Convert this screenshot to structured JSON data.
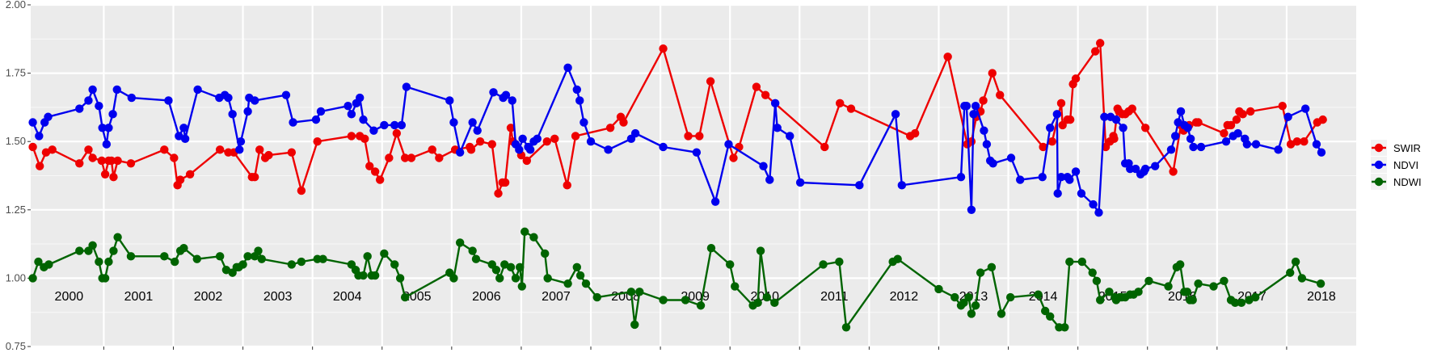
{
  "chart_data": {
    "type": "line",
    "title": "",
    "xlabel": "",
    "ylabel": "",
    "ylim": [
      0.75,
      2.0
    ],
    "xlim": [
      1999.95,
      2019.0
    ],
    "yticks": [
      "0.75",
      "1.00",
      "1.25",
      "1.50",
      "1.75",
      "2.00"
    ],
    "ytick_values": [
      0.75,
      1.0,
      1.25,
      1.5,
      1.75,
      2.0
    ],
    "year_labels": [
      "2000",
      "2001",
      "2002",
      "2003",
      "2004",
      "2005",
      "2006",
      "2007",
      "2008",
      "2009",
      "2010",
      "2011",
      "2012",
      "2013",
      "2014",
      "2015",
      "2016",
      "2017",
      "2018"
    ],
    "grid": true,
    "legend_position": "right",
    "series": [
      {
        "name": "SWIR",
        "color": "#ee0000",
        "x": [
          1999.98,
          2000.08,
          2000.17,
          2000.26,
          2000.65,
          2000.78,
          2000.84,
          2000.97,
          2001.02,
          2001.07,
          2001.11,
          2001.14,
          2001.2,
          2001.39,
          2001.87,
          2002.01,
          2002.06,
          2002.1,
          2002.24,
          2002.67,
          2002.79,
          2002.87,
          2003.13,
          2003.17,
          2003.24,
          2003.32,
          2003.37,
          2003.7,
          2003.84,
          2004.07,
          2004.56,
          2004.68,
          2004.75,
          2004.82,
          2004.9,
          2004.97,
          2005.1,
          2005.21,
          2005.33,
          2005.42,
          2005.72,
          2005.82,
          2006.05,
          2006.26,
          2006.28,
          2006.41,
          2006.58,
          2006.67,
          2006.73,
          2006.77,
          2006.85,
          2006.88,
          2007.0,
          2007.08,
          2007.37,
          2007.48,
          2007.66,
          2007.78,
          2008.28,
          2008.43,
          2008.47,
          2009.04,
          2009.4,
          2009.56,
          2009.72,
          2010.05,
          2010.13,
          2010.38,
          2010.51,
          2011.36,
          2011.58,
          2011.74,
          2012.59,
          2012.66,
          2013.13,
          2013.41,
          2013.47,
          2013.54,
          2013.6,
          2013.64,
          2013.77,
          2013.88,
          2014.5,
          2014.63,
          2014.76,
          2014.78,
          2014.85,
          2014.89,
          2014.93,
          2014.97,
          2015.25,
          2015.32,
          2015.4,
          2015.46,
          2015.51,
          2015.52,
          2015.57,
          2015.59,
          2015.64,
          2015.68,
          2015.73,
          2015.78,
          2015.97,
          2016.37,
          2016.48,
          2016.52,
          2016.6,
          2016.7,
          2016.73,
          2017.1,
          2017.15,
          2017.2,
          2017.28,
          2017.32,
          2017.37,
          2017.48,
          2017.94,
          2018.06,
          2018.15,
          2018.25,
          2018.44,
          2018.52
        ],
        "y": [
          1.48,
          1.41,
          1.46,
          1.47,
          1.42,
          1.47,
          1.44,
          1.43,
          1.38,
          1.43,
          1.43,
          1.37,
          1.43,
          1.42,
          1.47,
          1.44,
          1.34,
          1.36,
          1.38,
          1.47,
          1.46,
          1.46,
          1.37,
          1.37,
          1.47,
          1.44,
          1.45,
          1.46,
          1.32,
          1.5,
          1.52,
          1.52,
          1.51,
          1.41,
          1.39,
          1.36,
          1.44,
          1.53,
          1.44,
          1.44,
          1.47,
          1.44,
          1.47,
          1.48,
          1.47,
          1.5,
          1.49,
          1.31,
          1.35,
          1.35,
          1.55,
          1.5,
          1.45,
          1.43,
          1.5,
          1.51,
          1.34,
          1.52,
          1.55,
          1.59,
          1.57,
          1.84,
          1.52,
          1.52,
          1.72,
          1.44,
          1.48,
          1.7,
          1.67,
          1.48,
          1.64,
          1.62,
          1.52,
          1.53,
          1.81,
          1.49,
          1.5,
          1.59,
          1.61,
          1.65,
          1.75,
          1.67,
          1.48,
          1.5,
          1.64,
          1.56,
          1.58,
          1.58,
          1.71,
          1.73,
          1.83,
          1.86,
          1.48,
          1.5,
          1.52,
          1.51,
          1.62,
          1.61,
          1.6,
          1.6,
          1.61,
          1.62,
          1.55,
          1.39,
          1.56,
          1.54,
          1.56,
          1.57,
          1.57,
          1.53,
          1.56,
          1.56,
          1.58,
          1.61,
          1.6,
          1.61,
          1.63,
          1.49,
          1.5,
          1.5,
          1.57,
          1.58
        ]
      },
      {
        "name": "NDVI",
        "color": "#0000ee",
        "x": [
          1999.98,
          2000.07,
          2000.15,
          2000.2,
          2000.65,
          2000.78,
          2000.84,
          2000.93,
          2000.98,
          2001.04,
          2001.07,
          2001.13,
          2001.19,
          2001.4,
          2001.93,
          2002.08,
          2002.15,
          2002.17,
          2002.35,
          2002.66,
          2002.74,
          2002.79,
          2002.85,
          2002.95,
          2002.97,
          2003.07,
          2003.09,
          2003.17,
          2003.62,
          2003.72,
          2004.05,
          2004.12,
          2004.51,
          2004.56,
          2004.63,
          2004.68,
          2004.73,
          2004.88,
          2005.03,
          2005.18,
          2005.28,
          2005.35,
          2005.97,
          2006.03,
          2006.12,
          2006.3,
          2006.37,
          2006.6,
          2006.74,
          2006.78,
          2006.87,
          2006.92,
          2006.97,
          2007.02,
          2007.1,
          2007.13,
          2007.18,
          2007.23,
          2007.67,
          2007.8,
          2007.84,
          2007.9,
          2008.0,
          2008.25,
          2008.58,
          2008.64,
          2009.04,
          2009.52,
          2009.79,
          2009.98,
          2010.48,
          2010.57,
          2010.65,
          2010.68,
          2010.86,
          2011.01,
          2011.86,
          2012.38,
          2012.47,
          2013.32,
          2013.37,
          2013.4,
          2013.47,
          2013.5,
          2013.53,
          2013.65,
          2013.69,
          2013.74,
          2013.78,
          2014.04,
          2014.17,
          2014.49,
          2014.6,
          2014.7,
          2014.71,
          2014.76,
          2014.85,
          2014.88,
          2014.97,
          2015.05,
          2015.22,
          2015.3,
          2015.38,
          2015.47,
          2015.55,
          2015.65,
          2015.68,
          2015.73,
          2015.75,
          2015.83,
          2015.9,
          2015.95,
          2015.97,
          2016.11,
          2016.34,
          2016.4,
          2016.44,
          2016.48,
          2016.53,
          2016.58,
          2016.62,
          2016.66,
          2016.77,
          2017.13,
          2017.23,
          2017.3,
          2017.4,
          2017.43,
          2017.56,
          2017.88,
          2018.02,
          2018.27,
          2018.43,
          2018.5
        ],
        "y": [
          1.57,
          1.52,
          1.57,
          1.59,
          1.62,
          1.65,
          1.69,
          1.63,
          1.55,
          1.49,
          1.55,
          1.6,
          1.69,
          1.66,
          1.65,
          1.52,
          1.55,
          1.51,
          1.69,
          1.66,
          1.67,
          1.66,
          1.6,
          1.47,
          1.5,
          1.61,
          1.66,
          1.65,
          1.67,
          1.57,
          1.58,
          1.61,
          1.63,
          1.6,
          1.64,
          1.66,
          1.58,
          1.54,
          1.56,
          1.56,
          1.56,
          1.7,
          1.65,
          1.57,
          1.46,
          1.57,
          1.54,
          1.68,
          1.66,
          1.67,
          1.65,
          1.49,
          1.47,
          1.51,
          1.48,
          1.47,
          1.5,
          1.51,
          1.77,
          1.69,
          1.65,
          1.57,
          1.5,
          1.47,
          1.51,
          1.53,
          1.48,
          1.46,
          1.28,
          1.49,
          1.41,
          1.36,
          1.64,
          1.55,
          1.52,
          1.35,
          1.34,
          1.6,
          1.34,
          1.37,
          1.63,
          1.63,
          1.25,
          1.6,
          1.63,
          1.54,
          1.49,
          1.43,
          1.42,
          1.44,
          1.36,
          1.37,
          1.55,
          1.6,
          1.31,
          1.37,
          1.37,
          1.36,
          1.39,
          1.31,
          1.27,
          1.24,
          1.59,
          1.59,
          1.58,
          1.55,
          1.42,
          1.42,
          1.4,
          1.4,
          1.38,
          1.39,
          1.4,
          1.41,
          1.47,
          1.52,
          1.57,
          1.61,
          1.56,
          1.55,
          1.51,
          1.48,
          1.48,
          1.5,
          1.52,
          1.53,
          1.51,
          1.49,
          1.49,
          1.47,
          1.59,
          1.62,
          1.49,
          1.46
        ]
      },
      {
        "name": "NDWI",
        "color": "#006400",
        "x": [
          1999.98,
          2000.06,
          2000.14,
          2000.21,
          2000.65,
          2000.78,
          2000.84,
          2000.93,
          2000.98,
          2001.02,
          2001.07,
          2001.14,
          2001.2,
          2001.39,
          2001.87,
          2002.02,
          2002.1,
          2002.15,
          2002.34,
          2002.67,
          2002.76,
          2002.85,
          2002.91,
          2002.94,
          2003.0,
          2003.07,
          2003.17,
          2003.22,
          2003.27,
          2003.7,
          2003.84,
          2004.07,
          2004.15,
          2004.56,
          2004.62,
          2004.66,
          2004.73,
          2004.79,
          2004.85,
          2004.9,
          2005.03,
          2005.18,
          2005.26,
          2005.33,
          2005.97,
          2006.03,
          2006.12,
          2006.3,
          2006.35,
          2006.58,
          2006.64,
          2006.69,
          2006.76,
          2006.85,
          2006.92,
          2006.98,
          2007.01,
          2007.05,
          2007.18,
          2007.34,
          2007.38,
          2007.67,
          2007.8,
          2007.85,
          2007.93,
          2008.09,
          2008.58,
          2008.63,
          2008.7,
          2009.04,
          2009.36,
          2009.58,
          2009.73,
          2010.0,
          2010.07,
          2010.33,
          2010.4,
          2010.44,
          2010.53,
          2010.64,
          2011.34,
          2011.57,
          2011.67,
          2012.34,
          2012.41,
          2013.0,
          2013.23,
          2013.32,
          2013.36,
          2013.43,
          2013.47,
          2013.53,
          2013.6,
          2013.76,
          2013.9,
          2014.03,
          2014.43,
          2014.53,
          2014.6,
          2014.73,
          2014.81,
          2014.88,
          2015.06,
          2015.21,
          2015.27,
          2015.32,
          2015.45,
          2015.53,
          2015.55,
          2015.6,
          2015.63,
          2015.68,
          2015.75,
          2015.8,
          2015.87,
          2016.02,
          2016.3,
          2016.42,
          2016.47,
          2016.53,
          2016.57,
          2016.61,
          2016.65,
          2016.73,
          2016.95,
          2017.1,
          2017.2,
          2017.26,
          2017.35,
          2017.46,
          2017.55,
          2018.05,
          2018.13,
          2018.22,
          2018.49
        ],
        "y": [
          1.0,
          1.06,
          1.04,
          1.05,
          1.1,
          1.1,
          1.12,
          1.06,
          1.0,
          1.0,
          1.06,
          1.1,
          1.15,
          1.08,
          1.08,
          1.06,
          1.1,
          1.11,
          1.07,
          1.08,
          1.03,
          1.02,
          1.04,
          1.04,
          1.05,
          1.08,
          1.08,
          1.1,
          1.07,
          1.05,
          1.06,
          1.07,
          1.07,
          1.05,
          1.03,
          1.01,
          1.01,
          1.08,
          1.01,
          1.01,
          1.09,
          1.05,
          1.0,
          0.93,
          1.02,
          1.0,
          1.13,
          1.1,
          1.07,
          1.05,
          1.03,
          1.0,
          1.05,
          1.04,
          1.0,
          1.04,
          0.97,
          1.17,
          1.15,
          1.09,
          1.0,
          0.98,
          1.04,
          1.01,
          0.98,
          0.93,
          0.95,
          0.83,
          0.95,
          0.92,
          0.92,
          0.9,
          1.11,
          1.05,
          0.97,
          0.9,
          0.91,
          1.1,
          0.93,
          0.91,
          1.05,
          1.06,
          0.82,
          1.06,
          1.07,
          0.96,
          0.93,
          0.9,
          0.91,
          0.93,
          0.87,
          0.9,
          1.02,
          1.04,
          0.87,
          0.93,
          0.94,
          0.88,
          0.86,
          0.82,
          0.82,
          1.06,
          1.06,
          1.02,
          0.99,
          0.92,
          0.95,
          0.93,
          0.92,
          0.93,
          0.93,
          0.93,
          0.94,
          0.94,
          0.95,
          0.99,
          0.97,
          1.04,
          1.05,
          0.95,
          0.95,
          0.92,
          0.92,
          0.98,
          0.97,
          0.99,
          0.92,
          0.91,
          0.91,
          0.92,
          0.93,
          1.02,
          1.06,
          1.0,
          0.98
        ]
      }
    ]
  }
}
